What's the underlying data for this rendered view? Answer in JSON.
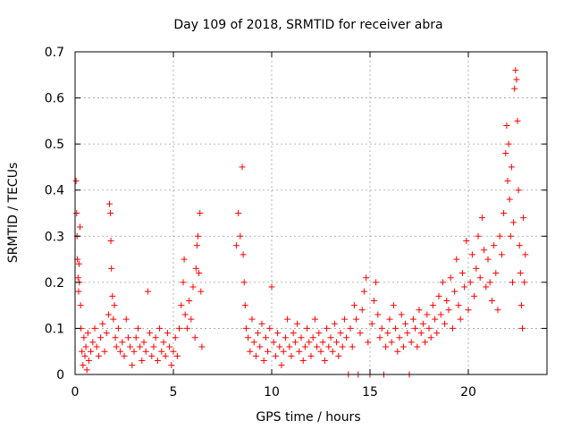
{
  "chart_data": {
    "type": "scatter",
    "title": "Day 109 of 2018, SRMTID for receiver abra",
    "xlabel": "GPS time / hours",
    "ylabel": "SRMTID / TECUs",
    "xlim": [
      0,
      24
    ],
    "ylim": [
      0,
      0.7
    ],
    "xticks": [
      0,
      5,
      10,
      15,
      20
    ],
    "xtick_labels": [
      "0",
      "5",
      "10",
      "15",
      "20"
    ],
    "yticks": [
      0,
      0.1,
      0.2,
      0.3,
      0.4,
      0.5,
      0.6,
      0.7
    ],
    "ytick_labels": [
      "0",
      "0.1",
      "0.2",
      "0.3",
      "0.4",
      "0.5",
      "0.6",
      "0.7"
    ],
    "grid": true,
    "marker": "+",
    "color": "#ff0000",
    "series": [
      {
        "name": "SRMTID",
        "points": [
          [
            0.05,
            0.42
          ],
          [
            0.08,
            0.35
          ],
          [
            0.1,
            0.3
          ],
          [
            0.12,
            0.25
          ],
          [
            0.15,
            0.21
          ],
          [
            0.18,
            0.18
          ],
          [
            0.2,
            0.24
          ],
          [
            0.22,
            0.2
          ],
          [
            0.25,
            0.32
          ],
          [
            0.28,
            0.15
          ],
          [
            0.3,
            0.1
          ],
          [
            0.35,
            0.05
          ],
          [
            0.4,
            0.02
          ],
          [
            0.45,
            0.08
          ],
          [
            0.5,
            0.04
          ],
          [
            0.55,
            0.06
          ],
          [
            0.6,
            0.01
          ],
          [
            0.65,
            0.09
          ],
          [
            0.7,
            0.03
          ],
          [
            0.8,
            0.05
          ],
          [
            0.9,
            0.07
          ],
          [
            1.0,
            0.1
          ],
          [
            1.1,
            0.06
          ],
          [
            1.2,
            0.04
          ],
          [
            1.3,
            0.08
          ],
          [
            1.4,
            0.11
          ],
          [
            1.5,
            0.05
          ],
          [
            1.6,
            0.09
          ],
          [
            1.7,
            0.13
          ],
          [
            1.75,
            0.37
          ],
          [
            1.8,
            0.35
          ],
          [
            1.82,
            0.29
          ],
          [
            1.85,
            0.23
          ],
          [
            1.9,
            0.17
          ],
          [
            1.95,
            0.12
          ],
          [
            2.0,
            0.15
          ],
          [
            2.05,
            0.08
          ],
          [
            2.1,
            0.06
          ],
          [
            2.2,
            0.1
          ],
          [
            2.3,
            0.05
          ],
          [
            2.4,
            0.07
          ],
          [
            2.5,
            0.04
          ],
          [
            2.6,
            0.12
          ],
          [
            2.7,
            0.08
          ],
          [
            2.8,
            0.06
          ],
          [
            2.9,
            0.02
          ],
          [
            3.0,
            0.05
          ],
          [
            3.1,
            0.08
          ],
          [
            3.2,
            0.1
          ],
          [
            3.3,
            0.06
          ],
          [
            3.4,
            0.03
          ],
          [
            3.5,
            0.07
          ],
          [
            3.6,
            0.05
          ],
          [
            3.7,
            0.18
          ],
          [
            3.8,
            0.09
          ],
          [
            3.9,
            0.04
          ],
          [
            4.0,
            0.06
          ],
          [
            4.1,
            0.08
          ],
          [
            4.2,
            0.03
          ],
          [
            4.3,
            0.1
          ],
          [
            4.4,
            0.05
          ],
          [
            4.5,
            0.07
          ],
          [
            4.6,
            0.04
          ],
          [
            4.7,
            0.09
          ],
          [
            4.8,
            0.06
          ],
          [
            4.9,
            0.02
          ],
          [
            5.0,
            0.05
          ],
          [
            5.1,
            0.08
          ],
          [
            5.2,
            0.04
          ],
          [
            5.3,
            0.1
          ],
          [
            5.4,
            0.15
          ],
          [
            5.5,
            0.2
          ],
          [
            5.55,
            0.25
          ],
          [
            5.6,
            0.13
          ],
          [
            5.7,
            0.1
          ],
          [
            5.8,
            0.16
          ],
          [
            5.9,
            0.12
          ],
          [
            6.0,
            0.19
          ],
          [
            6.1,
            0.08
          ],
          [
            6.15,
            0.23
          ],
          [
            6.2,
            0.28
          ],
          [
            6.25,
            0.3
          ],
          [
            6.3,
            0.22
          ],
          [
            6.35,
            0.35
          ],
          [
            6.4,
            0.18
          ],
          [
            6.45,
            0.06
          ],
          [
            8.2,
            0.28
          ],
          [
            8.3,
            0.35
          ],
          [
            8.4,
            0.3
          ],
          [
            8.5,
            0.45
          ],
          [
            8.55,
            0.26
          ],
          [
            8.6,
            0.2
          ],
          [
            8.65,
            0.15
          ],
          [
            8.7,
            0.1
          ],
          [
            8.8,
            0.08
          ],
          [
            8.9,
            0.05
          ],
          [
            9.0,
            0.12
          ],
          [
            9.1,
            0.07
          ],
          [
            9.2,
            0.04
          ],
          [
            9.3,
            0.09
          ],
          [
            9.4,
            0.06
          ],
          [
            9.5,
            0.11
          ],
          [
            9.6,
            0.03
          ],
          [
            9.7,
            0.08
          ],
          [
            9.8,
            0.05
          ],
          [
            9.9,
            0.1
          ],
          [
            10.0,
            0.19
          ],
          [
            10.1,
            0.07
          ],
          [
            10.2,
            0.04
          ],
          [
            10.3,
            0.09
          ],
          [
            10.4,
            0.06
          ],
          [
            10.5,
            0.02
          ],
          [
            10.6,
            0.05
          ],
          [
            10.7,
            0.08
          ],
          [
            10.8,
            0.12
          ],
          [
            10.9,
            0.06
          ],
          [
            11.0,
            0.04
          ],
          [
            11.1,
            0.09
          ],
          [
            11.2,
            0.07
          ],
          [
            11.3,
            0.11
          ],
          [
            11.4,
            0.05
          ],
          [
            11.5,
            0.08
          ],
          [
            11.6,
            0.03
          ],
          [
            11.7,
            0.06
          ],
          [
            11.8,
            0.1
          ],
          [
            11.9,
            0.07
          ],
          [
            12.0,
            0.04
          ],
          [
            12.1,
            0.08
          ],
          [
            12.2,
            0.12
          ],
          [
            12.3,
            0.06
          ],
          [
            12.4,
            0.09
          ],
          [
            12.5,
            0.05
          ],
          [
            12.6,
            0.07
          ],
          [
            12.7,
            0.03
          ],
          [
            12.8,
            0.1
          ],
          [
            12.9,
            0.06
          ],
          [
            13.0,
            0.08
          ],
          [
            13.1,
            0.05
          ],
          [
            13.2,
            0.11
          ],
          [
            13.3,
            0.07
          ],
          [
            13.4,
            0.04
          ],
          [
            13.5,
            0.09
          ],
          [
            13.6,
            0.06
          ],
          [
            13.7,
            0.12
          ],
          [
            13.8,
            0.08
          ],
          [
            13.9,
            0.0
          ],
          [
            14.0,
            0.1
          ],
          [
            14.1,
            0.06
          ],
          [
            14.2,
            0.15
          ],
          [
            14.3,
            0.12
          ],
          [
            14.4,
            0.0
          ],
          [
            14.5,
            0.09
          ],
          [
            14.6,
            0.14
          ],
          [
            14.7,
            0.18
          ],
          [
            14.8,
            0.21
          ],
          [
            14.9,
            0.07
          ],
          [
            15.0,
            0.0
          ],
          [
            15.1,
            0.11
          ],
          [
            15.2,
            0.16
          ],
          [
            15.3,
            0.2
          ],
          [
            15.4,
            0.13
          ],
          [
            15.5,
            0.08
          ],
          [
            15.6,
            0.1
          ],
          [
            15.7,
            0.0
          ],
          [
            15.8,
            0.06
          ],
          [
            15.9,
            0.09
          ],
          [
            16.0,
            0.12
          ],
          [
            16.1,
            0.07
          ],
          [
            16.2,
            0.15
          ],
          [
            16.3,
            0.1
          ],
          [
            16.4,
            0.05
          ],
          [
            16.5,
            0.08
          ],
          [
            16.6,
            0.13
          ],
          [
            16.7,
            0.06
          ],
          [
            16.8,
            0.11
          ],
          [
            16.9,
            0.09
          ],
          [
            17.0,
            0.0
          ],
          [
            17.1,
            0.07
          ],
          [
            17.2,
            0.12
          ],
          [
            17.3,
            0.1
          ],
          [
            17.4,
            0.06
          ],
          [
            17.5,
            0.14
          ],
          [
            17.6,
            0.09
          ],
          [
            17.7,
            0.11
          ],
          [
            17.8,
            0.07
          ],
          [
            17.9,
            0.13
          ],
          [
            18.0,
            0.1
          ],
          [
            18.1,
            0.08
          ],
          [
            18.2,
            0.15
          ],
          [
            18.3,
            0.12
          ],
          [
            18.4,
            0.09
          ],
          [
            18.5,
            0.17
          ],
          [
            18.6,
            0.13
          ],
          [
            18.7,
            0.2
          ],
          [
            18.8,
            0.11
          ],
          [
            18.9,
            0.16
          ],
          [
            19.0,
            0.14
          ],
          [
            19.1,
            0.21
          ],
          [
            19.2,
            0.1
          ],
          [
            19.3,
            0.18
          ],
          [
            19.4,
            0.25
          ],
          [
            19.5,
            0.15
          ],
          [
            19.6,
            0.12
          ],
          [
            19.7,
            0.22
          ],
          [
            19.8,
            0.19
          ],
          [
            19.9,
            0.29
          ],
          [
            20.0,
            0.14
          ],
          [
            20.1,
            0.2
          ],
          [
            20.2,
            0.26
          ],
          [
            20.3,
            0.17
          ],
          [
            20.4,
            0.23
          ],
          [
            20.5,
            0.3
          ],
          [
            20.6,
            0.21
          ],
          [
            20.7,
            0.34
          ],
          [
            20.8,
            0.27
          ],
          [
            20.9,
            0.19
          ],
          [
            21.0,
            0.25
          ],
          [
            21.1,
            0.2
          ],
          [
            21.2,
            0.16
          ],
          [
            21.3,
            0.28
          ],
          [
            21.4,
            0.22
          ],
          [
            21.5,
            0.14
          ],
          [
            21.6,
            0.3
          ],
          [
            21.7,
            0.26
          ],
          [
            21.8,
            0.35
          ],
          [
            21.9,
            0.48
          ],
          [
            21.95,
            0.54
          ],
          [
            22.0,
            0.42
          ],
          [
            22.05,
            0.5
          ],
          [
            22.1,
            0.38
          ],
          [
            22.15,
            0.3
          ],
          [
            22.2,
            0.45
          ],
          [
            22.25,
            0.2
          ],
          [
            22.3,
            0.33
          ],
          [
            22.35,
            0.62
          ],
          [
            22.4,
            0.66
          ],
          [
            22.45,
            0.64
          ],
          [
            22.5,
            0.55
          ],
          [
            22.55,
            0.4
          ],
          [
            22.6,
            0.28
          ],
          [
            22.65,
            0.22
          ],
          [
            22.7,
            0.15
          ],
          [
            22.75,
            0.1
          ],
          [
            22.8,
            0.34
          ],
          [
            22.85,
            0.2
          ],
          [
            22.9,
            0.26
          ]
        ]
      }
    ]
  }
}
